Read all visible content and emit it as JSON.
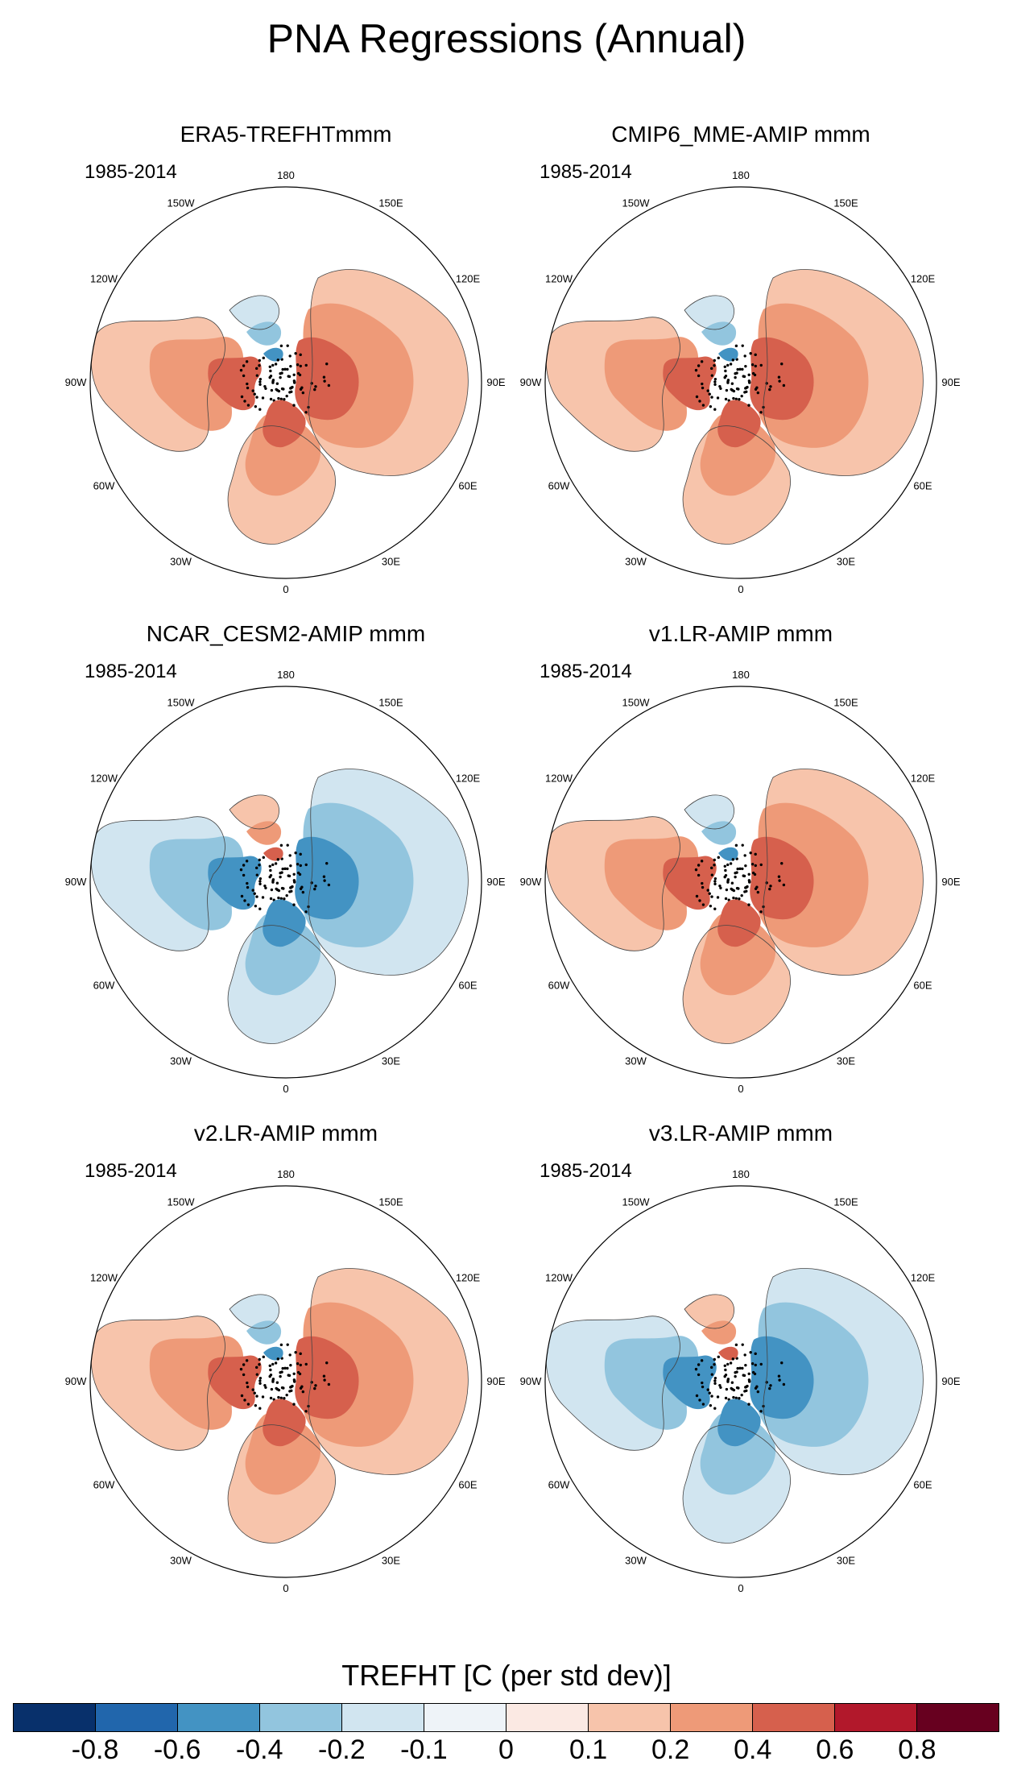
{
  "figure": {
    "title": "PNA Regressions (Annual)"
  },
  "panels": [
    {
      "title": "ERA5-TREFHTmmm",
      "period": "1985-2014",
      "pattern": "warm"
    },
    {
      "title": "CMIP6_MME-AMIP  mmm",
      "period": "1985-2014",
      "pattern": "warm"
    },
    {
      "title": "NCAR_CESM2-AMIP  mmm",
      "period": "1985-2014",
      "pattern": "cold"
    },
    {
      "title": "v1.LR-AMIP  mmm",
      "period": "1985-2014",
      "pattern": "warm"
    },
    {
      "title": "v2.LR-AMIP  mmm",
      "period": "1985-2014",
      "pattern": "warm"
    },
    {
      "title": "v3.LR-AMIP  mmm",
      "period": "1985-2014",
      "pattern": "cold"
    }
  ],
  "longitude_labels": {
    "top": "180",
    "upper_left": "150W",
    "upper_right": "150E",
    "mid_upper_left": "120W",
    "mid_upper_right": "120E",
    "left": "90W",
    "right": "90E",
    "mid_lower_left": "60W",
    "mid_lower_right": "60E",
    "lower_left": "30W",
    "lower_right": "30E",
    "bottom": "0"
  },
  "colorbar": {
    "title": "TREFHT [C (per std dev)]",
    "colors": [
      "#08306b",
      "#2166ac",
      "#4393c3",
      "#92c5de",
      "#d1e5f0",
      "#eef3f8",
      "#fbe9e3",
      "#f7c4ab",
      "#ee9a78",
      "#d6604d",
      "#b2182b",
      "#67001f"
    ],
    "ticks": [
      "-0.8",
      "-0.6",
      "-0.4",
      "-0.2",
      "-0.1",
      "0",
      "0.1",
      "0.2",
      "0.4",
      "0.6",
      "0.8"
    ]
  }
}
